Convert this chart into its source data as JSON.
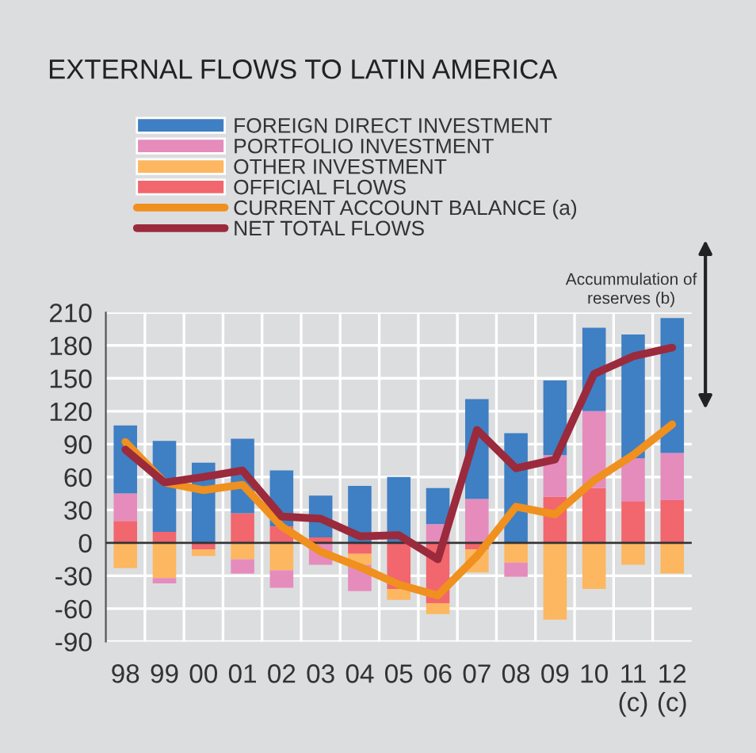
{
  "chart_data": {
    "type": "bar",
    "title": "EXTERNAL FLOWS TO LATIN AMERICA",
    "categories": [
      "98",
      "99",
      "00",
      "01",
      "02",
      "03",
      "04",
      "05",
      "06",
      "07",
      "08",
      "09",
      "10",
      "11\n(c)",
      "12\n(c)"
    ],
    "stacked": true,
    "series": [
      {
        "name": "OFFICIAL FLOWS",
        "color": "#f2666e",
        "values": [
          20,
          10,
          -6,
          27,
          15,
          5,
          -10,
          -42,
          -55,
          -6,
          0,
          42,
          50,
          38,
          39
        ]
      },
      {
        "name": "OTHER INVESTMENT",
        "color": "#fcb760",
        "values": [
          -23,
          -32,
          -6,
          -15,
          -25,
          null,
          -10,
          -10,
          -10,
          -21,
          -18,
          -70,
          -42,
          -20,
          -28
        ]
      },
      {
        "name": "PORTFOLIO INVESTMENT",
        "color": "#e58cbc",
        "values": [
          25,
          -5,
          0,
          -13,
          -16,
          -20,
          -24,
          0,
          17,
          40,
          -13,
          38,
          70,
          39,
          43
        ]
      },
      {
        "name": "FOREIGN DIRECT INVESTMENT",
        "color": "#3f7fc3",
        "values": [
          62,
          83,
          73,
          68,
          51,
          38,
          52,
          60,
          33,
          91,
          100,
          68,
          76,
          113,
          123
        ]
      },
      {
        "name": "CURRENT ACCOUNT BALANCE (a)",
        "type": "line",
        "color": "#f0901e",
        "values": [
          92,
          55,
          48,
          53,
          15,
          -8,
          -22,
          -38,
          -48,
          -12,
          33,
          26,
          57,
          80,
          108
        ]
      },
      {
        "name": "NET TOTAL FLOWS",
        "type": "line",
        "color": "#9b2a3c",
        "values": [
          85,
          55,
          60,
          66,
          24,
          22,
          6,
          7,
          -15,
          103,
          68,
          76,
          154,
          170,
          178
        ]
      }
    ],
    "ylim": [
      -90,
      210
    ],
    "yticks": [
      -90,
      -60,
      -30,
      0,
      30,
      60,
      90,
      120,
      150,
      180,
      210
    ],
    "ref_lines": [
      {
        "axis": "y",
        "value": 0,
        "color": "#333333"
      }
    ],
    "annotations": [
      "Accummulation of\nreserves (b)"
    ],
    "grid": true,
    "legend": "top left"
  }
}
